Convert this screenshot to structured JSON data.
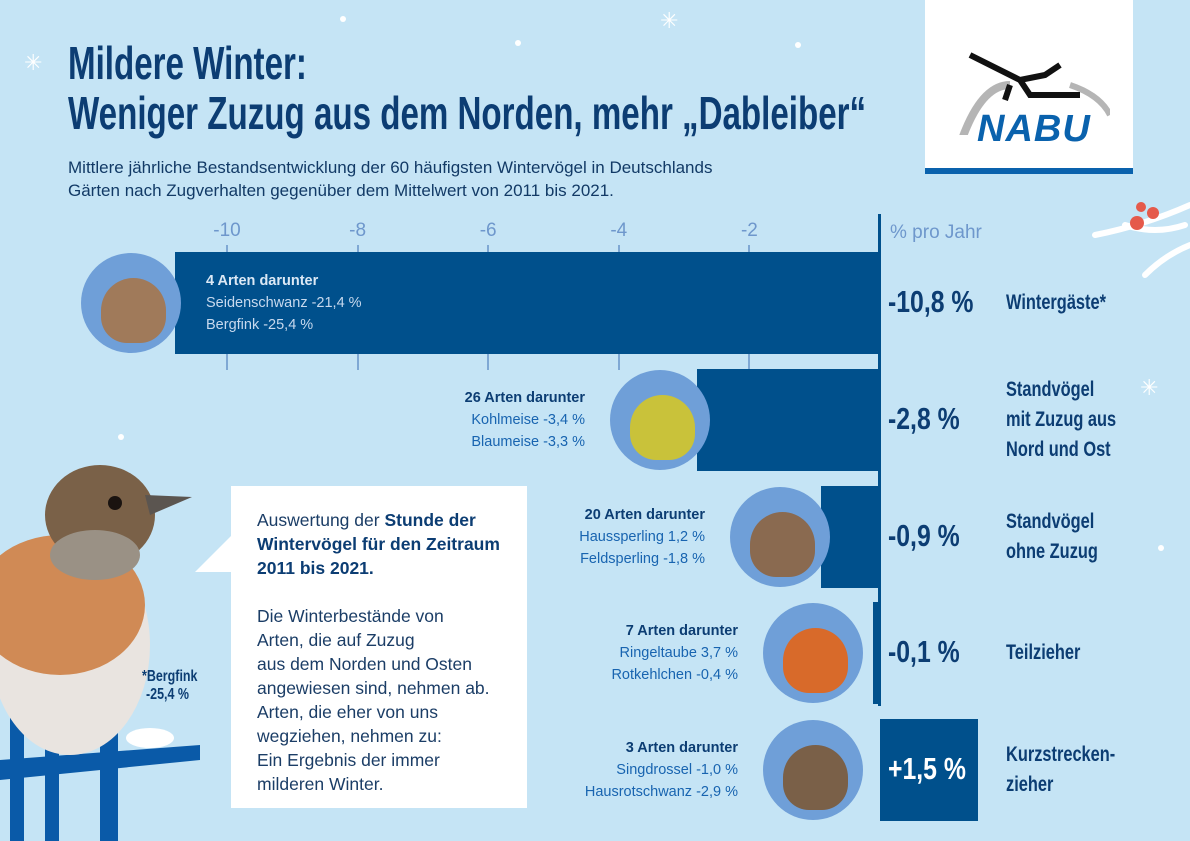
{
  "header": {
    "title_line1": "Mildere Winter:",
    "title_line2": "Weniger Zuzug aus dem Norden, mehr „Dableiber“",
    "subtitle_line1": "Mittlere jährliche Bestandsentwicklung der 60 häufigsten Wintervögel in Deutschlands",
    "subtitle_line2": "Gärten nach Zugverhalten gegenüber dem Mittelwert von 2011 bis 2021."
  },
  "logo": {
    "text": "NABU"
  },
  "colors": {
    "bar": "#00508c",
    "background": "#c5e4f5",
    "text": "#0c3d73",
    "accent": "#0a62ad"
  },
  "chart_data": {
    "type": "bar",
    "orientation": "horizontal",
    "unit_label": "% pro Jahr",
    "xlim": [
      -10.8,
      1.5
    ],
    "xticks": [
      -10,
      -8,
      -6,
      -4,
      -2
    ],
    "xtick_labels": [
      "-10",
      "-8",
      "-6",
      "-4",
      "-2"
    ],
    "categories": [
      "Wintergäste*",
      "Standvögel mit Zuzug aus Nord und Ost",
      "Standvögel ohne Zuzug",
      "Teilzieher",
      "Kurzstreckenzieher"
    ],
    "category_lines": [
      [
        "Wintergäste*"
      ],
      [
        "Standvögel",
        "mit Zuzug aus",
        "Nord und Ost"
      ],
      [
        "Standvögel",
        "ohne Zuzug"
      ],
      [
        "Teilzieher"
      ],
      [
        "Kurzstrecken-",
        "zieher"
      ]
    ],
    "values": [
      -10.8,
      -2.8,
      -0.9,
      -0.1,
      1.5
    ],
    "value_labels": [
      "-10,8 %",
      "-2,8 %",
      "-0,9 %",
      "-0,1 %",
      "+1,5 %"
    ],
    "groups": [
      {
        "heading": "4 Arten darunter",
        "lines": [
          "Seidenschwanz -21,4 %",
          "Bergfink -25,4 %"
        ]
      },
      {
        "heading": "26 Arten darunter",
        "lines": [
          "Kohlmeise -3,4 %",
          "Blaumeise -3,3 %"
        ]
      },
      {
        "heading": "20 Arten darunter",
        "lines": [
          "Haussperling 1,2 %",
          "Feldsperling -1,8 %"
        ]
      },
      {
        "heading": "7 Arten darunter",
        "lines": [
          "Ringeltaube 3,7 %",
          "Rotkehlchen -0,4 %"
        ]
      },
      {
        "heading": "3 Arten darunter",
        "lines": [
          "Singdrossel -1,0 %",
          "Hausrotschwanz -2,9 %"
        ]
      }
    ]
  },
  "infobox": {
    "intro": "Auswertung der ",
    "bold": "Stunde der Wintervögel für den Zeitraum 2011 bis 2021.",
    "body": [
      "Die Winterbestände von",
      "Arten, die auf Zuzug",
      "aus dem Norden und Osten",
      "angewiesen sind, nehmen ab.",
      "Arten, die eher von uns",
      "wegziehen, nehmen zu:",
      "Ein Ergebnis der immer",
      "milderen Winter."
    ]
  },
  "footnote": {
    "line1": "*Bergfink",
    "line2": "-25,4 %"
  }
}
